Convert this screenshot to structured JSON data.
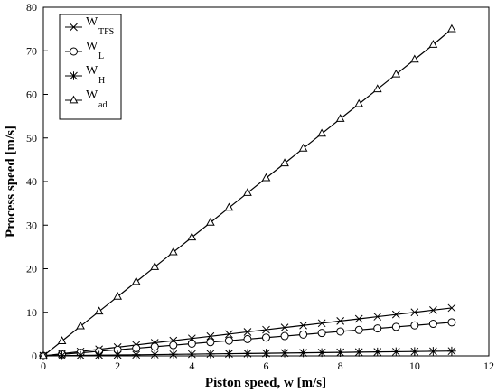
{
  "chart_data": {
    "type": "line",
    "xlabel": "Piston speed, w [m/s]",
    "ylabel": "Process speed [m/s]",
    "xlim": [
      0,
      12
    ],
    "ylim": [
      0,
      80
    ],
    "xticks": [
      0,
      2,
      4,
      6,
      8,
      10,
      12
    ],
    "yticks": [
      0,
      10,
      20,
      30,
      40,
      50,
      60,
      70,
      80
    ],
    "grid": false,
    "legend_position": "top-left",
    "series": [
      {
        "name_main": "W",
        "name_sub": "TFS",
        "marker": "x-cross",
        "color": "#000000",
        "x": [
          0,
          0.5,
          1,
          1.5,
          2,
          2.5,
          3,
          3.5,
          4,
          4.5,
          5,
          5.5,
          6,
          6.5,
          7,
          7.5,
          8,
          8.5,
          9,
          9.5,
          10,
          10.5,
          11
        ],
        "y": [
          0,
          0.5,
          1.0,
          1.5,
          2.0,
          2.5,
          3.0,
          3.5,
          4.0,
          4.5,
          5.0,
          5.5,
          6.0,
          6.5,
          7.0,
          7.5,
          8.0,
          8.5,
          9.0,
          9.5,
          10.0,
          10.5,
          11.0
        ]
      },
      {
        "name_main": "W",
        "name_sub": "L",
        "marker": "circle",
        "color": "#000000",
        "x": [
          0,
          0.5,
          1,
          1.5,
          2,
          2.5,
          3,
          3.5,
          4,
          4.5,
          5,
          5.5,
          6,
          6.5,
          7,
          7.5,
          8,
          8.5,
          9,
          9.5,
          10,
          10.5,
          11
        ],
        "y": [
          0,
          0.35,
          0.7,
          1.05,
          1.4,
          1.75,
          2.1,
          2.45,
          2.8,
          3.15,
          3.5,
          3.85,
          4.2,
          4.55,
          4.9,
          5.25,
          5.6,
          5.95,
          6.3,
          6.65,
          7.0,
          7.35,
          7.7
        ]
      },
      {
        "name_main": "W",
        "name_sub": "H",
        "marker": "asterisk",
        "color": "#000000",
        "x": [
          0,
          0.5,
          1,
          1.5,
          2,
          2.5,
          3,
          3.5,
          4,
          4.5,
          5,
          5.5,
          6,
          6.5,
          7,
          7.5,
          8,
          8.5,
          9,
          9.5,
          10,
          10.5,
          11
        ],
        "y": [
          0,
          0.05,
          0.1,
          0.15,
          0.2,
          0.25,
          0.3,
          0.35,
          0.4,
          0.45,
          0.5,
          0.55,
          0.6,
          0.65,
          0.7,
          0.75,
          0.8,
          0.85,
          0.9,
          0.95,
          1.0,
          1.05,
          1.1
        ]
      },
      {
        "name_main": "W",
        "name_sub": "ad",
        "marker": "triangle",
        "color": "#000000",
        "x": [
          0,
          0.5,
          1,
          1.5,
          2,
          2.5,
          3,
          3.5,
          4,
          4.5,
          5,
          5.5,
          6,
          6.5,
          7,
          7.5,
          8,
          8.5,
          9,
          9.5,
          10,
          10.5,
          11
        ],
        "y": [
          0,
          3.4,
          6.8,
          10.2,
          13.6,
          17.0,
          20.4,
          23.8,
          27.2,
          30.6,
          34.0,
          37.4,
          40.8,
          44.2,
          47.6,
          51.0,
          54.4,
          57.8,
          61.2,
          64.6,
          68.0,
          71.4,
          75.0
        ]
      }
    ]
  }
}
